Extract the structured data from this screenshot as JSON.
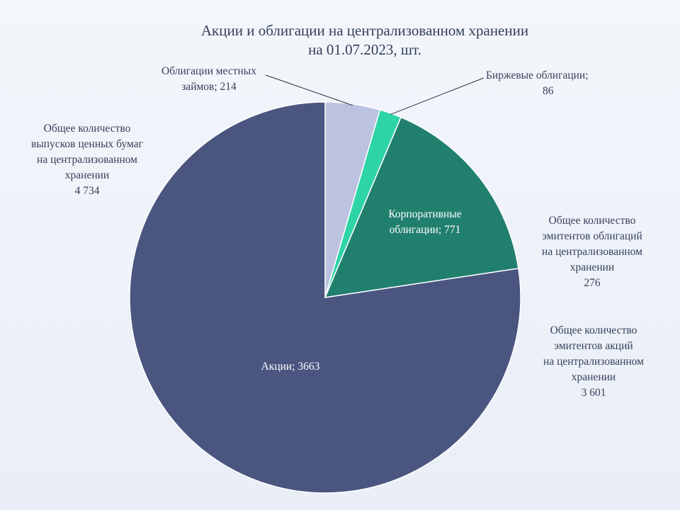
{
  "title": {
    "line1": "Акции и облигации на централизованном хранении",
    "line2": "на 01.07.2023, шт."
  },
  "colors": {
    "stocks": "#4a5580",
    "corporate": "#217f6e",
    "exchange": "#2dd4a6",
    "local": "#bcc3e0"
  },
  "chart_data": {
    "type": "pie",
    "title": "Акции и облигации на централизованном хранении на 01.07.2023, шт.",
    "slices": [
      {
        "label": "Облигации местных займов",
        "value": 214,
        "color": "#bcc3e0"
      },
      {
        "label": "Биржевые облигации",
        "value": 86,
        "color": "#2dd4a6"
      },
      {
        "label": "Корпоративные облигации",
        "value": 771,
        "color": "#217f6e"
      },
      {
        "label": "Акции",
        "value": 3663,
        "color": "#4a5580"
      }
    ],
    "slice_labels": {
      "local": [
        "Облигации местных",
        "займов; 214"
      ],
      "exchange": [
        "Биржевые облигации;",
        "86"
      ],
      "corporate": [
        "Корпоративные",
        "облигации; 771"
      ],
      "stocks": [
        "Акции; 3663"
      ]
    }
  },
  "side_notes": {
    "issues": {
      "lines": [
        "Общее количество",
        "выпусков ценных бумаг",
        "на централизованном",
        "хранении"
      ],
      "value": "4 734"
    },
    "bond_issuers": {
      "lines": [
        "Общее количество",
        "эмитентов облигаций",
        "на централизованном",
        "хранении"
      ],
      "value": "276"
    },
    "stock_issuers": {
      "lines": [
        "Общее количество",
        "эмитентов акций",
        "на централизованном",
        "хранении"
      ],
      "value": "3 601"
    }
  }
}
